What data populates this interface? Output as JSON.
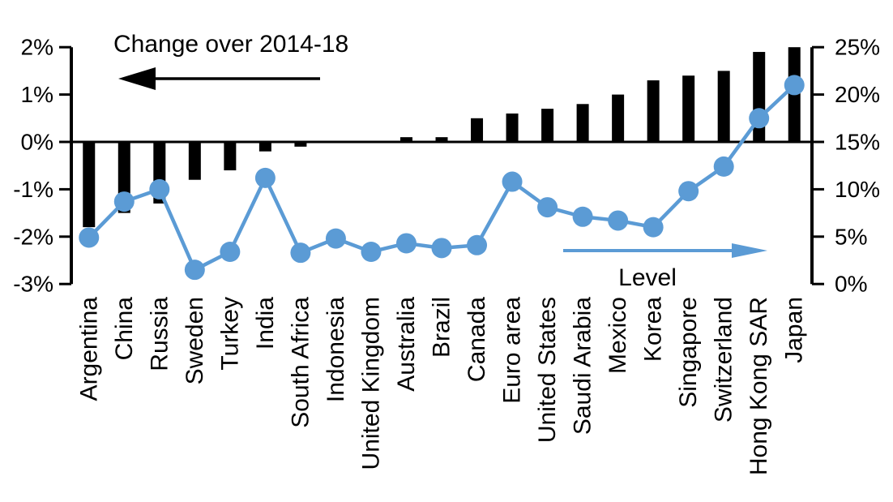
{
  "chart_data": {
    "type": "bar",
    "subtype": "combo-bar-line-dual-axis",
    "title": "Change over 2014-18",
    "line_series_label": "Level",
    "categories": [
      "Argentina",
      "China",
      "Russia",
      "Sweden",
      "Turkey",
      "India",
      "South Africa",
      "Indonesia",
      "United Kingdom",
      "Australia",
      "Brazil",
      "Canada",
      "Euro area",
      "United States",
      "Saudi Arabia",
      "Mexico",
      "Korea",
      "Singapore",
      "Switzerland",
      "Hong Kong SAR",
      "Japan"
    ],
    "series": [
      {
        "name": "Change over 2014-18",
        "type": "bar",
        "axis": "left",
        "color": "#000000",
        "values": [
          -1.8,
          -1.5,
          -1.3,
          -0.8,
          -0.6,
          -0.2,
          -0.1,
          0.0,
          0.0,
          0.1,
          0.1,
          0.5,
          0.6,
          0.7,
          0.8,
          1.0,
          1.3,
          1.4,
          1.5,
          1.9,
          2.0
        ]
      },
      {
        "name": "Level",
        "type": "line",
        "axis": "right",
        "color": "#5B9BD5",
        "values": [
          4.9,
          8.7,
          10.0,
          1.5,
          3.4,
          11.2,
          3.3,
          4.8,
          3.4,
          4.3,
          3.8,
          4.1,
          10.8,
          8.1,
          7.1,
          6.7,
          6.0,
          9.8,
          12.4,
          17.5,
          21.0
        ]
      }
    ],
    "left_axis": {
      "tick_labels": [
        "2%",
        "1%",
        "0%",
        "-1%",
        "-2%",
        "-3%"
      ],
      "tick_values": [
        2,
        1,
        0,
        -1,
        -2,
        -3
      ],
      "min": -3,
      "max": 2
    },
    "right_axis": {
      "tick_labels": [
        "25%",
        "20%",
        "15%",
        "10%",
        "5%",
        "0%"
      ],
      "tick_values": [
        25,
        20,
        15,
        10,
        5,
        0
      ],
      "min": 0,
      "max": 25
    },
    "grid": false,
    "legend_position": "in-plot annotations with arrows"
  },
  "annotations": {
    "bar_series_caption": "Change over 2014-18",
    "bar_series_arrow_direction": "left",
    "line_series_caption": "Level",
    "line_series_arrow_direction": "right"
  },
  "colors": {
    "background": "#FFFFFF",
    "bar": "#000000",
    "line": "#5B9BD5",
    "axis": "#000000",
    "text": "#000000"
  }
}
